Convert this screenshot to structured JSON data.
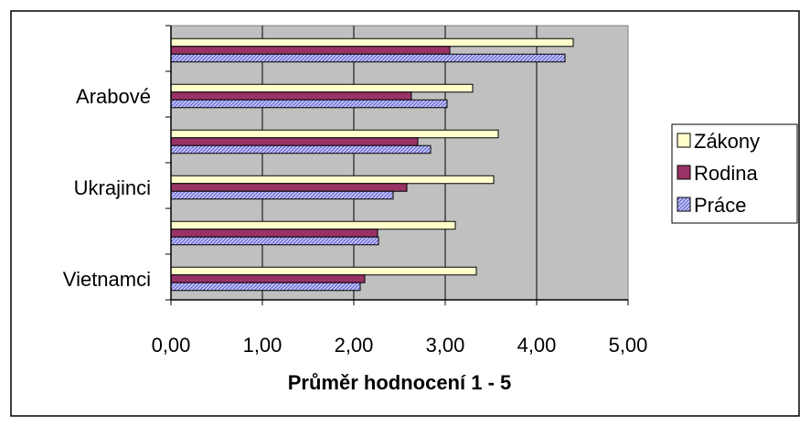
{
  "chart_data": {
    "type": "bar",
    "orientation": "horizontal",
    "categories": [
      "Vietnamci",
      "",
      "Ukrajinci",
      "",
      "Arabové",
      ""
    ],
    "series": [
      {
        "name": "Zákony",
        "color": "#ffffcc",
        "pattern": "solid",
        "values": [
          3.34,
          3.11,
          3.53,
          3.58,
          3.3,
          4.4
        ]
      },
      {
        "name": "Rodina",
        "color": "#993366",
        "pattern": "solid",
        "values": [
          2.12,
          2.26,
          2.58,
          2.7,
          2.63,
          3.05
        ]
      },
      {
        "name": "Práce",
        "color": "#9999ff",
        "pattern": "hatched",
        "values": [
          2.07,
          2.27,
          2.43,
          2.84,
          3.02,
          4.31
        ]
      }
    ],
    "xlabel": "Průměr hodnocení 1 - 5",
    "xlim": [
      0,
      5
    ],
    "xticks": [
      "0,00",
      "1,00",
      "2,00",
      "3,00",
      "4,00",
      "5,00"
    ],
    "plot_background": "#c0c0c0",
    "grid": "vertical",
    "legend_position": "right"
  }
}
